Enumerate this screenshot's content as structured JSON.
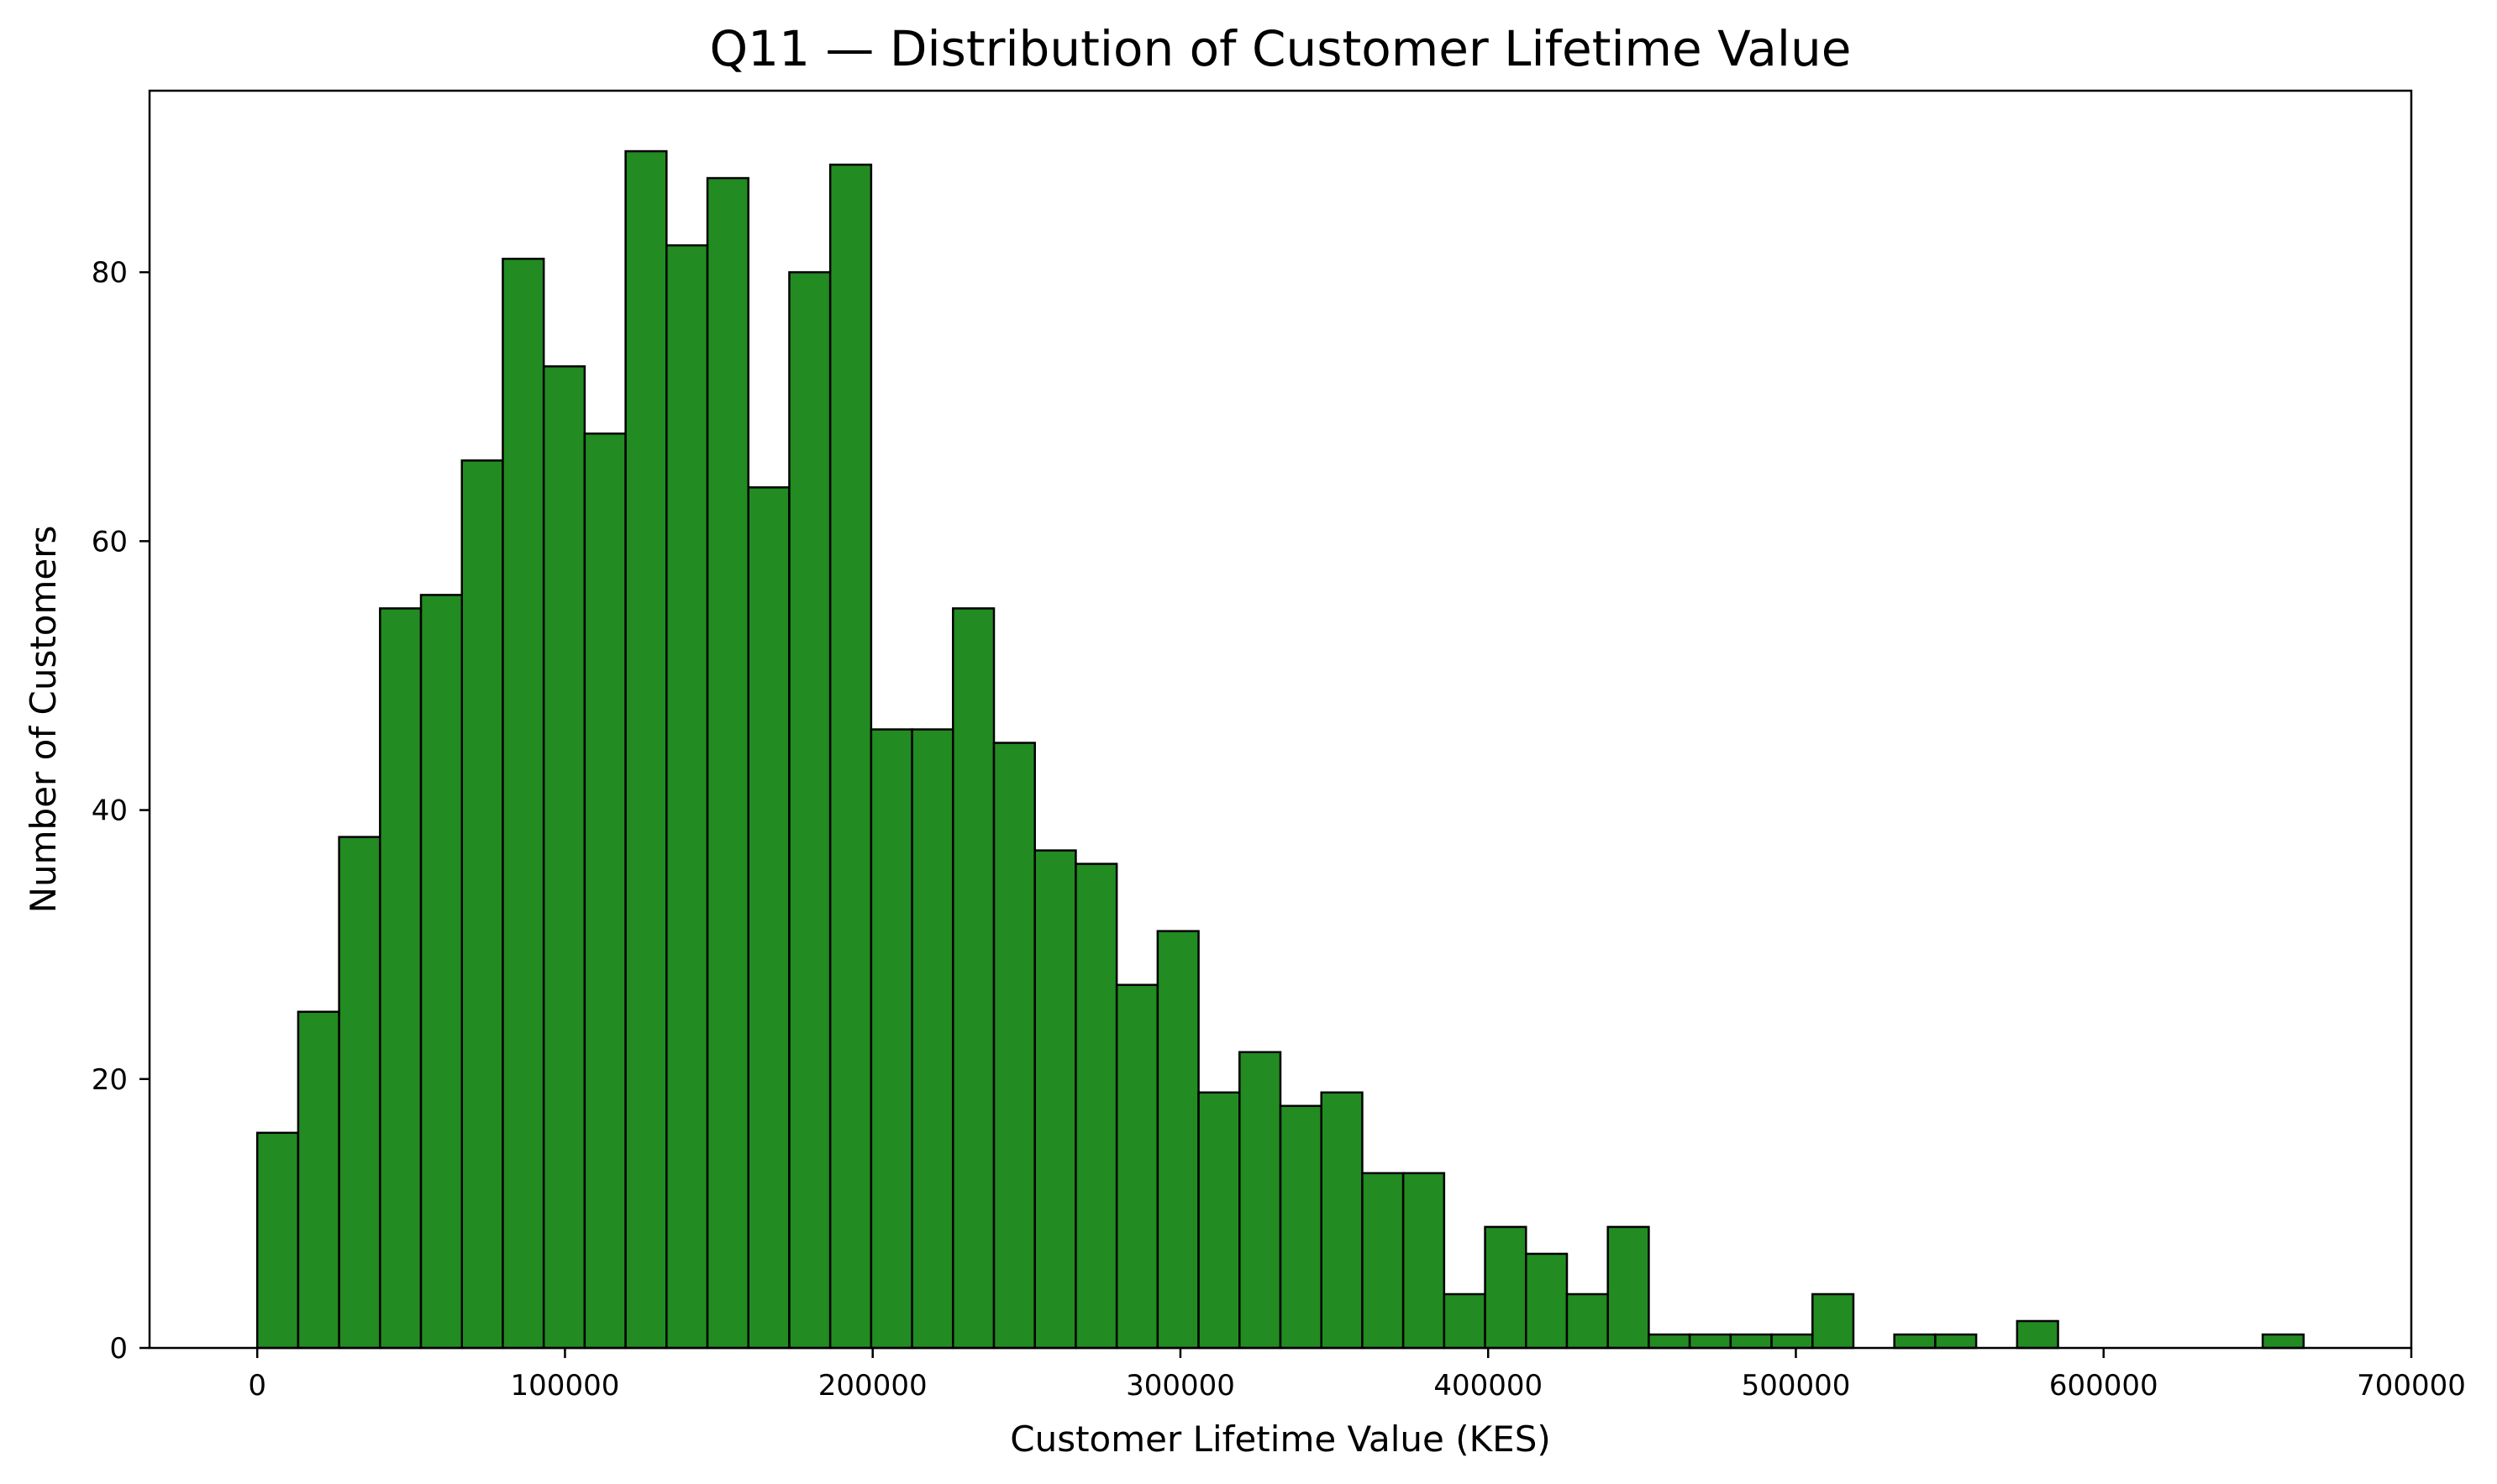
{
  "chart_data": {
    "type": "bar",
    "subtype": "histogram",
    "title": "Q11 — Distribution of Customer Lifetime Value",
    "xlabel": "Customer Lifetime Value (KES)",
    "ylabel": "Number of Customers",
    "xlim": [
      -35000,
      700000
    ],
    "ylim": [
      0,
      93.5
    ],
    "xticks": [
      0,
      100000,
      200000,
      300000,
      400000,
      500000,
      600000,
      700000
    ],
    "xtick_labels": [
      "0",
      "100000",
      "200000",
      "300000",
      "400000",
      "500000",
      "600000",
      "700000"
    ],
    "yticks": [
      0,
      20,
      40,
      60,
      80
    ],
    "ytick_labels": [
      "0",
      "20",
      "40",
      "60",
      "80"
    ],
    "bin_start": 0,
    "bin_width": 13300,
    "values": [
      16,
      25,
      38,
      55,
      56,
      66,
      81,
      73,
      68,
      89,
      82,
      87,
      64,
      80,
      88,
      46,
      46,
      55,
      45,
      37,
      36,
      27,
      31,
      19,
      22,
      18,
      19,
      13,
      13,
      4,
      9,
      7,
      4,
      9,
      1,
      1,
      1,
      1,
      4,
      0,
      1,
      1,
      0,
      2,
      0,
      0,
      0,
      0,
      0,
      1
    ],
    "bar_color": "#228B22",
    "edge_color": "#000000",
    "grid": false,
    "legend": "none"
  }
}
